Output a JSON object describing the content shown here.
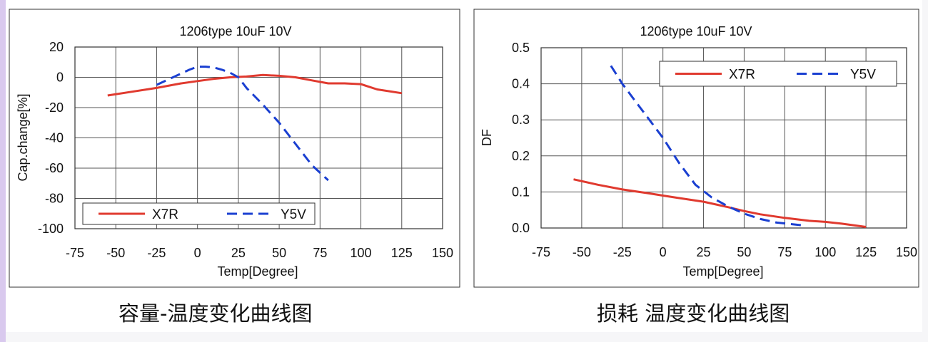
{
  "captions": {
    "left": "容量-温度变化曲线图",
    "right": "损耗 温度变化曲线图"
  },
  "chart_data": [
    {
      "type": "line",
      "title": "1206type  10uF  10V",
      "xlabel": "Temp[Degree]",
      "ylabel": "Cap.change[%]",
      "xlim": [
        -75,
        150
      ],
      "ylim": [
        -100,
        20
      ],
      "xticks": [
        -75,
        -50,
        -25,
        0,
        25,
        50,
        75,
        100,
        125,
        150
      ],
      "yticks": [
        -100,
        -80,
        -60,
        -40,
        -20,
        0,
        20
      ],
      "grid": true,
      "legend_position": "bottom-left",
      "series": [
        {
          "name": "X7R",
          "color": "#e03a2f",
          "style": "solid",
          "x": [
            -55,
            -40,
            -25,
            -10,
            0,
            10,
            20,
            30,
            40,
            50,
            60,
            70,
            80,
            90,
            100,
            110,
            125
          ],
          "y": [
            -12,
            -9.5,
            -7,
            -4,
            -2.5,
            -1,
            0,
            0.5,
            1.5,
            1,
            0,
            -2,
            -4,
            -4,
            -4.5,
            -8,
            -10.5
          ]
        },
        {
          "name": "Y5V",
          "color": "#1a3fd1",
          "style": "dashed",
          "x": [
            -25,
            -15,
            -5,
            0,
            5,
            10,
            15,
            20,
            25,
            30,
            40,
            50,
            60,
            70,
            80
          ],
          "y": [
            -5,
            0,
            5,
            7,
            7,
            6.5,
            5,
            3,
            0,
            -7,
            -18,
            -30,
            -44,
            -58,
            -68
          ]
        }
      ]
    },
    {
      "type": "line",
      "title": "1206type  10uF  10V",
      "xlabel": "Temp[Degree]",
      "ylabel": "DF",
      "xlim": [
        -75,
        150
      ],
      "ylim": [
        0,
        0.5
      ],
      "xticks": [
        -75,
        -50,
        -25,
        0,
        25,
        50,
        75,
        100,
        125,
        150
      ],
      "yticks": [
        "0.0",
        "0.1",
        "0.2",
        "0.3",
        "0.4",
        "0.5"
      ],
      "grid": true,
      "legend_position": "top-right",
      "series": [
        {
          "name": "X7R",
          "color": "#e03a2f",
          "style": "solid",
          "x": [
            -55,
            -40,
            -25,
            -10,
            0,
            10,
            25,
            40,
            50,
            60,
            75,
            90,
            100,
            110,
            125
          ],
          "y": [
            0.135,
            0.12,
            0.107,
            0.097,
            0.09,
            0.083,
            0.073,
            0.058,
            0.047,
            0.038,
            0.028,
            0.02,
            0.017,
            0.012,
            0.003
          ]
        },
        {
          "name": "Y5V",
          "color": "#1a3fd1",
          "style": "dashed",
          "x": [
            -32,
            -25,
            -15,
            -5,
            0,
            10,
            20,
            30,
            40,
            50,
            60,
            70,
            85
          ],
          "y": [
            0.45,
            0.4,
            0.34,
            0.28,
            0.25,
            0.18,
            0.12,
            0.085,
            0.06,
            0.04,
            0.025,
            0.015,
            0.008
          ]
        }
      ]
    }
  ]
}
